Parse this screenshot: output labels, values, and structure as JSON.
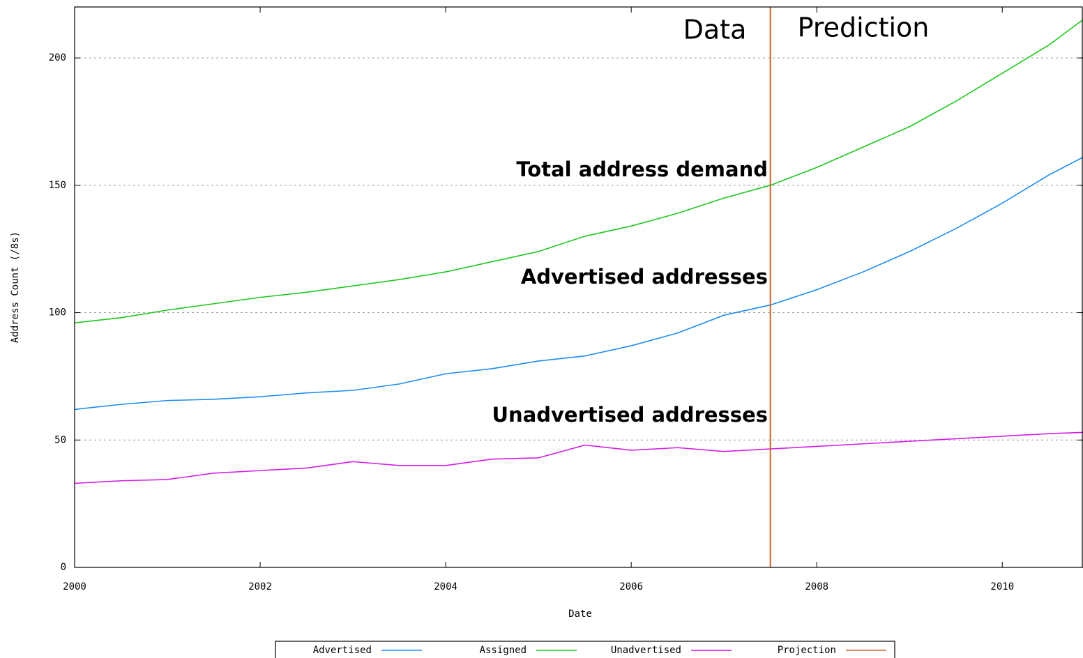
{
  "chart_data": {
    "type": "line",
    "x_label": "Date",
    "y_label": "Address Count (/8s)",
    "x": [
      2000,
      2000.5,
      2001,
      2001.5,
      2002,
      2002.5,
      2003,
      2003.5,
      2004,
      2004.5,
      2005,
      2005.5,
      2006,
      2006.5,
      2007,
      2007.5,
      2008,
      2008.5,
      2009,
      2009.5,
      2010,
      2010.5,
      2010.87
    ],
    "series": [
      {
        "name": "Advertised",
        "color": "#1e8cf0",
        "values": [
          62,
          64,
          65.5,
          66,
          67,
          68.5,
          69.5,
          72,
          76,
          78,
          81,
          83,
          87,
          92,
          99,
          103,
          109,
          116,
          124,
          133,
          143,
          154,
          161
        ]
      },
      {
        "name": "Assigned",
        "color": "#1ec81e",
        "values": [
          96,
          98,
          101,
          103.5,
          106,
          108,
          110.5,
          113,
          116,
          120,
          124,
          130,
          134,
          139,
          145,
          150,
          157,
          165,
          173,
          183,
          194,
          205,
          215
        ]
      },
      {
        "name": "Unadvertised",
        "color": "#d21ee6",
        "values": [
          33,
          34,
          34.5,
          37,
          38,
          39,
          41.5,
          40,
          40,
          42.5,
          43,
          48,
          46,
          47,
          45.5,
          46.5,
          47.5,
          48.5,
          49.5,
          50.5,
          51.5,
          52.5,
          53
        ]
      }
    ],
    "projection": {
      "name": "Projection",
      "color": "#c8642a",
      "x": 2007.5
    },
    "annotations": [
      "Data",
      "Prediction",
      "Total address demand",
      "Advertised addresses",
      "Unadvertised addresses"
    ],
    "xlim": [
      2000,
      2010.87
    ],
    "xticks": [
      2000,
      2002,
      2004,
      2006,
      2008,
      2010
    ],
    "ylim": [
      0,
      220
    ],
    "yticks": [
      0,
      50,
      100,
      150,
      200
    ],
    "grid": true
  }
}
